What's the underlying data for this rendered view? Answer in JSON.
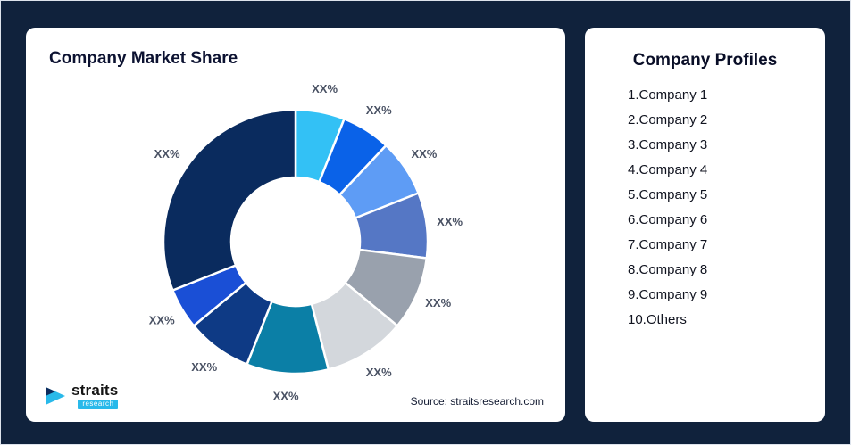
{
  "theme": {
    "background": "#10223c",
    "card_background": "#ffffff",
    "accent_cyan": "#29b9ea",
    "title_color": "#0c1231"
  },
  "market_share_card": {
    "title": "Company Market Share",
    "source": "Source: straitsresearch.com",
    "logo": {
      "name": "straits",
      "sub": "research"
    }
  },
  "profiles_card": {
    "title": "Company Profiles",
    "items": [
      "1.Company 1",
      "2.Company 2",
      "3.Company 3",
      "4.Company 4",
      "5.Company 5",
      "6.Company 6",
      "7.Company 7",
      "8.Company 8",
      "9.Company 9",
      "10.Others"
    ]
  },
  "chart_data": {
    "type": "pie",
    "subtype": "donut",
    "title": "Company Market Share",
    "categories": [
      "Company 1",
      "Company 2",
      "Company 3",
      "Company 4",
      "Company 5",
      "Company 6",
      "Company 7",
      "Company 8",
      "Company 9",
      "Others"
    ],
    "values": [
      6,
      6,
      7,
      8,
      9,
      10,
      10,
      8,
      5,
      31
    ],
    "labels": [
      "XX%",
      "XX%",
      "XX%",
      "XX%",
      "XX%",
      "XX%",
      "XX%",
      "XX%",
      "XX%",
      "XX%"
    ],
    "colors": [
      "#33c1f5",
      "#0a62e8",
      "#5e9cf5",
      "#5577c5",
      "#99a1ad",
      "#d3d7dc",
      "#0b7fa6",
      "#0e3a85",
      "#1a4fd6",
      "#0a2b5e"
    ],
    "start_angle": 0,
    "direction": "clockwise",
    "legend": "none",
    "value_note": "values estimated from arc angles; on-chart labels are placeholder XX%"
  }
}
